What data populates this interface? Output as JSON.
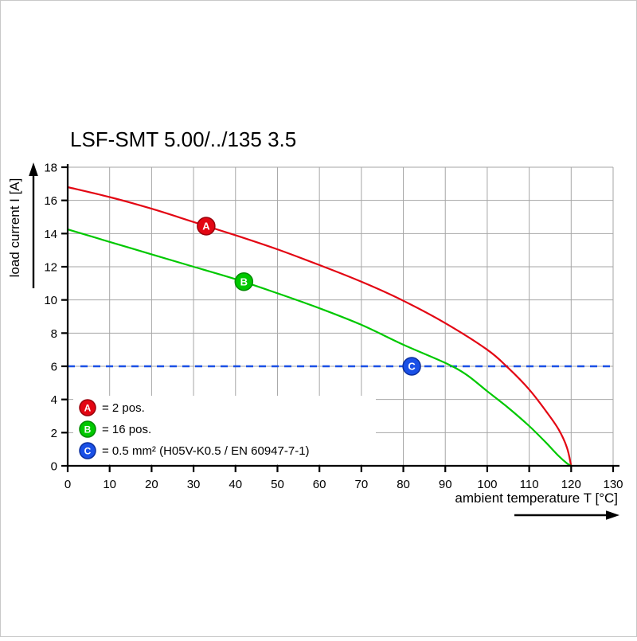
{
  "chart_data": {
    "type": "line",
    "title": "LSF-SMT 5.00/../135 3.5",
    "xlabel": "ambient temperature T [°C]",
    "ylabel": "load current I [A]",
    "xlim": [
      0,
      130
    ],
    "ylim": [
      0,
      18
    ],
    "x_ticks": [
      0,
      10,
      20,
      30,
      40,
      50,
      60,
      70,
      80,
      90,
      100,
      110,
      120,
      130
    ],
    "y_ticks": [
      0,
      2,
      4,
      6,
      8,
      10,
      12,
      14,
      16,
      18
    ],
    "grid": true,
    "colors": {
      "grid": "#a6a6a6",
      "axis": "#000000",
      "background": "#ffffff"
    },
    "series": [
      {
        "name": "A",
        "label": "= 2 pos.",
        "color": "#e30613",
        "stroke": "#99000b",
        "points": [
          [
            0,
            16.8
          ],
          [
            10,
            16.2
          ],
          [
            20,
            15.5
          ],
          [
            30,
            14.7
          ],
          [
            40,
            13.9
          ],
          [
            50,
            13.05
          ],
          [
            60,
            12.1
          ],
          [
            70,
            11.1
          ],
          [
            80,
            9.95
          ],
          [
            90,
            8.6
          ],
          [
            100,
            7.0
          ],
          [
            105,
            5.9
          ],
          [
            110,
            4.6
          ],
          [
            114,
            3.3
          ],
          [
            117,
            2.2
          ],
          [
            119,
            1.1
          ],
          [
            120,
            0
          ]
        ],
        "marker": {
          "x": 33,
          "y": 14.45
        }
      },
      {
        "name": "B",
        "label": "= 16 pos.",
        "color": "#00c800",
        "stroke": "#008a00",
        "points": [
          [
            0,
            14.25
          ],
          [
            10,
            13.5
          ],
          [
            20,
            12.75
          ],
          [
            30,
            12.0
          ],
          [
            40,
            11.25
          ],
          [
            50,
            10.4
          ],
          [
            60,
            9.5
          ],
          [
            70,
            8.5
          ],
          [
            80,
            7.3
          ],
          [
            90,
            6.2
          ],
          [
            95,
            5.5
          ],
          [
            100,
            4.5
          ],
          [
            105,
            3.5
          ],
          [
            110,
            2.4
          ],
          [
            114,
            1.4
          ],
          [
            117,
            0.6
          ],
          [
            119,
            0.15
          ],
          [
            120,
            0
          ]
        ],
        "marker": {
          "x": 42,
          "y": 11.1
        }
      }
    ],
    "reference_line": {
      "name": "C",
      "label": "= 0.5 mm² (H05V-K0.5 / EN 60947-7-1)",
      "color": "#1a50e6",
      "stroke": "#0b2f9e",
      "y": 6,
      "marker": {
        "x": 82,
        "y": 6
      }
    },
    "legend_position": "lower-left"
  }
}
